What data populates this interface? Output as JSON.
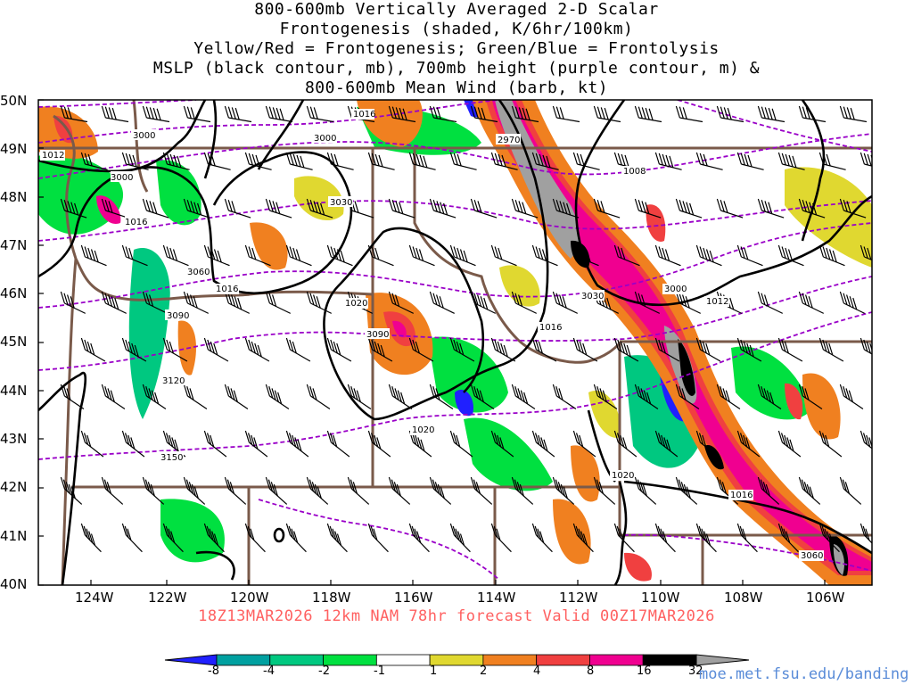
{
  "title_lines": [
    "800-600mb Vertically Averaged 2-D Scalar",
    "Frontogenesis (shaded, K/6hr/100km)",
    "Yellow/Red = Frontogenesis;  Green/Blue = Frontolysis",
    "MSLP (black contour, mb), 700mb height (purple contour, m) &",
    "800-600mb Mean Wind (barb, kt)"
  ],
  "lat_labels": [
    "50N",
    "49N",
    "48N",
    "47N",
    "46N",
    "45N",
    "44N",
    "43N",
    "42N",
    "41N",
    "40N"
  ],
  "lon_labels": [
    "124W",
    "122W",
    "120W",
    "118W",
    "116W",
    "114W",
    "112W",
    "110W",
    "108W",
    "106W"
  ],
  "footer": "18Z13MAR2026 12km NAM 78hr forecast Valid 00Z17MAR2026",
  "colorbar": {
    "labels": [
      "-8",
      "-4",
      "-2",
      "-1",
      "1",
      "2",
      "4",
      "8",
      "16",
      "32"
    ],
    "colors": [
      "#2020ff",
      "#00a0a0",
      "#00c880",
      "#00e040",
      "#ffffff",
      "#e0d830",
      "#f08020",
      "#f04040",
      "#f00090",
      "#000000",
      "#a0a0a0"
    ]
  },
  "pressure_labels": [
    "1016",
    "1012",
    "1016",
    "1016",
    "1020",
    "1016",
    "1008",
    "1012",
    "1020",
    "1016",
    "1020"
  ],
  "height_labels": [
    "3000",
    "3000",
    "3000",
    "3030",
    "3060",
    "3090",
    "3120",
    "3150",
    "2970",
    "3030",
    "3000",
    "3090",
    "3060"
  ],
  "url": "moe.met.fsu.edu/banding"
}
